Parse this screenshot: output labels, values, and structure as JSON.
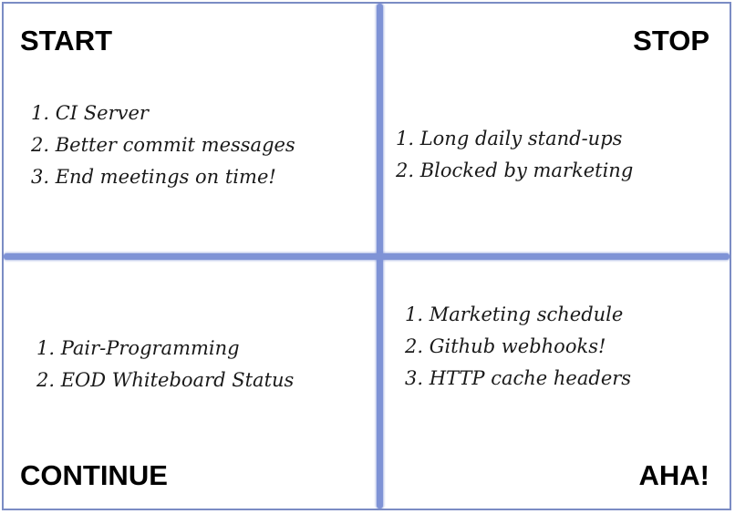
{
  "board": {
    "start": {
      "title": "START",
      "items": [
        "1. CI Server",
        "2. Better commit messages",
        "3. End meetings on time!"
      ]
    },
    "stop": {
      "title": "STOP",
      "items": [
        "1. Long daily stand-ups",
        "2. Blocked by marketing"
      ]
    },
    "continue": {
      "title": "CONTINUE",
      "items": [
        "1. Pair-Programming",
        "2. EOD Whiteboard Status"
      ]
    },
    "aha": {
      "title": "AHA!",
      "items": [
        "1. Marketing schedule",
        "2. Github webhooks!",
        "3. HTTP cache headers"
      ]
    }
  },
  "colors": {
    "divider": "#7f93d6",
    "border": "#7b8cc4",
    "text": "#000000"
  }
}
